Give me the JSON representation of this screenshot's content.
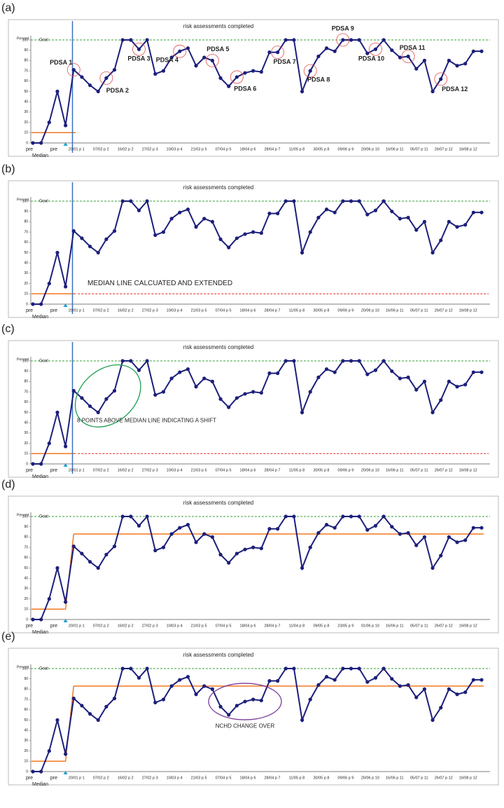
{
  "chart_data": [
    {
      "label": "(a)",
      "type": "line",
      "title": "risk assessments completed",
      "ylabel": "Percent",
      "categories": [
        "pre",
        null,
        null,
        "pre",
        null,
        "20/01 p 1",
        null,
        null,
        "07/02 p 2",
        null,
        null,
        "16/02 p 2",
        null,
        null,
        "27/02 p 3",
        null,
        null,
        "10/03 p 4",
        null,
        null,
        "21/03 p 5",
        null,
        null,
        "07/04 p 5",
        null,
        null,
        "18/04 p 6",
        null,
        null,
        "28/04 p 7",
        null,
        null,
        "11/05 p 8",
        null,
        null,
        "30/05 p 8",
        null,
        null,
        "09/06 p 9",
        null,
        null,
        "20/06 p 10",
        null,
        null,
        "16/06 p 11",
        null,
        null,
        "05/07 p 11",
        null,
        null,
        "26/07 p 12",
        null,
        null,
        "16/08 p 12",
        null,
        null
      ],
      "series": [
        {
          "color": "#1c1f7a",
          "values": [
            0,
            0,
            20,
            50,
            17,
            71,
            64,
            56,
            50,
            63,
            71,
            100,
            100,
            91,
            100,
            67,
            70,
            83,
            89,
            92,
            75,
            83,
            80,
            63,
            55,
            64,
            68,
            70,
            69,
            88,
            88,
            100,
            100,
            50,
            70,
            84,
            92,
            89,
            100,
            100,
            100,
            87,
            91,
            100,
            90,
            83,
            84,
            72,
            80,
            50,
            62,
            80,
            75,
            77,
            89,
            89
          ]
        }
      ],
      "ylim": [
        0,
        100
      ],
      "yticks": [
        0,
        10,
        20,
        30,
        40,
        50,
        60,
        70,
        80,
        90,
        100
      ],
      "goal": {
        "label": "Goal",
        "value": 100,
        "color": "#3aa03a"
      },
      "median": {
        "label": "Median",
        "values": [
          10
        ],
        "color": "#f07820"
      },
      "annotations": [
        "PDSA 1",
        "PDSA 2",
        "PDSA 3",
        "PDSA 4",
        "PDSA 5",
        "PDSA 6",
        "PDSA 7",
        "PDSA 8",
        "PDSA 9",
        "PDSA 10",
        "PDSA 11",
        "PDSA 12"
      ]
    },
    {
      "label": "(b)",
      "type": "line",
      "title": "risk assessments completed",
      "ylabel": "Percent",
      "categories": [
        "pre",
        null,
        null,
        "pre",
        null,
        "20/01 p 1",
        null,
        null,
        "07/02 p 2",
        null,
        null,
        "16/02 p 2",
        null,
        null,
        "27/02 p 3",
        null,
        null,
        "10/03 p 4",
        null,
        null,
        "21/03 p 5",
        null,
        null,
        "07/04 p 5",
        null,
        null,
        "18/04 p 6",
        null,
        null,
        "28/04 p 7",
        null,
        null,
        "11/05 p 8",
        null,
        null,
        "30/05 p 8",
        null,
        null,
        "09/06 p 9",
        null,
        null,
        "20/06 p 10",
        null,
        null,
        "16/06 p 11",
        null,
        null,
        "05/07 p 11",
        null,
        null,
        "26/07 p 12",
        null,
        null,
        "16/08 p 12",
        null,
        null
      ],
      "series": [
        {
          "color": "#1c1f7a",
          "values": [
            0,
            0,
            20,
            50,
            17,
            71,
            64,
            56,
            50,
            63,
            71,
            100,
            100,
            91,
            100,
            67,
            70,
            83,
            89,
            92,
            75,
            83,
            80,
            63,
            55,
            64,
            68,
            70,
            69,
            88,
            88,
            100,
            100,
            50,
            70,
            84,
            92,
            89,
            100,
            100,
            100,
            87,
            91,
            100,
            90,
            83,
            84,
            72,
            80,
            50,
            62,
            80,
            75,
            77,
            89,
            89
          ]
        }
      ],
      "ylim": [
        0,
        100
      ],
      "yticks": [
        0,
        10,
        20,
        30,
        40,
        50,
        60,
        70,
        80,
        90,
        100
      ],
      "goal": {
        "label": "Goal",
        "value": 100,
        "color": "#3aa03a"
      },
      "median": {
        "label": "Median",
        "values": [
          10
        ],
        "color": "#f07820"
      },
      "extended_median": {
        "value": 10,
        "color": "#e02020"
      },
      "annotations": [
        "MEDIAN LINE CALCUATED AND EXTENDED"
      ]
    },
    {
      "label": "(c)",
      "type": "line",
      "title": "risk assessments completed",
      "ylabel": "Percent",
      "categories": [
        "pre",
        null,
        null,
        "pre",
        null,
        "20/01 p 1",
        null,
        null,
        "07/02 p 2",
        null,
        null,
        "16/02 p 2",
        null,
        null,
        "27/02 p 3",
        null,
        null,
        "10/03 p 4",
        null,
        null,
        "21/03 p 5",
        null,
        null,
        "07/04 p 5",
        null,
        null,
        "18/04 p 6",
        null,
        null,
        "28/04 p 7",
        null,
        null,
        "11/05 p 8",
        null,
        null,
        "30/05 p 8",
        null,
        null,
        "09/06 p 9",
        null,
        null,
        "20/06 p 10",
        null,
        null,
        "16/06 p 11",
        null,
        null,
        "05/07 p 11",
        null,
        null,
        "26/07 p 12",
        null,
        null,
        "16/08 p 12",
        null,
        null
      ],
      "series": [
        {
          "color": "#1c1f7a",
          "values": [
            0,
            0,
            20,
            50,
            17,
            71,
            64,
            56,
            50,
            63,
            71,
            100,
            100,
            91,
            100,
            67,
            70,
            83,
            89,
            92,
            75,
            83,
            80,
            63,
            55,
            64,
            68,
            70,
            69,
            88,
            88,
            100,
            100,
            50,
            70,
            84,
            92,
            89,
            100,
            100,
            100,
            87,
            91,
            100,
            90,
            83,
            84,
            72,
            80,
            50,
            62,
            80,
            75,
            77,
            89,
            89
          ]
        }
      ],
      "ylim": [
        0,
        100
      ],
      "yticks": [
        0,
        10,
        20,
        30,
        40,
        50,
        60,
        70,
        80,
        90,
        100
      ],
      "goal": {
        "label": "Goal",
        "value": 100,
        "color": "#3aa03a"
      },
      "median": {
        "label": "Median",
        "values": [
          10
        ],
        "color": "#f07820"
      },
      "extended_median": {
        "value": 10,
        "color": "#e02020"
      },
      "annotations": [
        "8 POINTS ABOVE MEDIAN LINE INDICATING A SHIFT"
      ]
    },
    {
      "label": "(d)",
      "type": "line",
      "title": "risk assessments completed",
      "ylabel": "Percent",
      "categories": [
        "pre",
        null,
        null,
        "pre",
        null,
        "20/01 p 1",
        null,
        null,
        "07/02 p 2",
        null,
        null,
        "16/02 p 2",
        null,
        null,
        "27/02 p 3",
        null,
        null,
        "10/03 p 4",
        null,
        null,
        "21/03 p 5",
        null,
        null,
        "07/04 p 5",
        null,
        null,
        "18/04 p 6",
        null,
        null,
        "28/04 p 7",
        null,
        null,
        "11/04 p 8",
        null,
        null,
        "09/05 p 8",
        null,
        null,
        "23/05 p 9",
        null,
        null,
        "01/06 p 10",
        null,
        null,
        "16/06 p 11",
        null,
        null,
        "05/07 p 11",
        null,
        null,
        "26/07 p 12",
        null,
        null,
        "16/08 p 12",
        null,
        null
      ],
      "series": [
        {
          "color": "#1c1f7a",
          "values": [
            0,
            0,
            20,
            50,
            17,
            71,
            64,
            56,
            50,
            63,
            71,
            100,
            100,
            91,
            100,
            67,
            70,
            83,
            89,
            92,
            75,
            83,
            80,
            63,
            55,
            64,
            68,
            70,
            69,
            88,
            88,
            100,
            100,
            50,
            70,
            84,
            92,
            89,
            100,
            100,
            100,
            87,
            91,
            100,
            90,
            83,
            84,
            72,
            80,
            50,
            62,
            80,
            75,
            77,
            89,
            89
          ]
        }
      ],
      "ylim": [
        0,
        100
      ],
      "yticks": [
        0,
        10,
        20,
        30,
        40,
        50,
        60,
        70,
        80,
        90,
        100
      ],
      "goal": {
        "label": "Goal",
        "value": 100,
        "color": "#3aa03a"
      },
      "median": {
        "label": "Median",
        "values": [
          10,
          83
        ],
        "color": "#f07820"
      },
      "annotations": []
    },
    {
      "label": "(e)",
      "type": "line",
      "title": "risk assessments completed",
      "ylabel": "Percent",
      "categories": [
        "pre",
        null,
        null,
        "pre",
        null,
        "20/01 p 1",
        null,
        null,
        "07/02 p 2",
        null,
        null,
        "16/02 p 2",
        null,
        null,
        "27/02 p 3",
        null,
        null,
        "10/03 p 4",
        null,
        null,
        "21/03 p 5",
        null,
        null,
        "07/04 p 5",
        null,
        null,
        "18/04 p 6",
        null,
        null,
        "28/04 p 7",
        null,
        null,
        "11/05 p 8",
        null,
        null,
        "30/05 p 8",
        null,
        null,
        "09/06 p 9",
        null,
        null,
        "20/06 p 10",
        null,
        null,
        "16/06 p 11",
        null,
        null,
        "05/07 p 11",
        null,
        null,
        "26/07 p 12",
        null,
        null,
        "16/08 p 12",
        null,
        null
      ],
      "series": [
        {
          "color": "#1c1f7a",
          "values": [
            0,
            0,
            20,
            50,
            17,
            71,
            64,
            56,
            50,
            63,
            71,
            100,
            100,
            91,
            100,
            67,
            70,
            83,
            89,
            92,
            75,
            83,
            80,
            63,
            55,
            64,
            68,
            70,
            69,
            88,
            88,
            100,
            100,
            50,
            70,
            84,
            92,
            89,
            100,
            100,
            100,
            87,
            91,
            100,
            90,
            83,
            84,
            72,
            80,
            50,
            62,
            80,
            75,
            77,
            89,
            89
          ]
        }
      ],
      "ylim": [
        0,
        100
      ],
      "yticks": [
        0,
        10,
        20,
        30,
        40,
        50,
        60,
        70,
        80,
        90,
        100
      ],
      "goal": {
        "label": "Goal",
        "value": 100,
        "color": "#3aa03a"
      },
      "median": {
        "label": "Median",
        "values": [
          10,
          83
        ],
        "color": "#f07820"
      },
      "annotations": [
        "NCHD CHANGE OVER"
      ]
    }
  ]
}
